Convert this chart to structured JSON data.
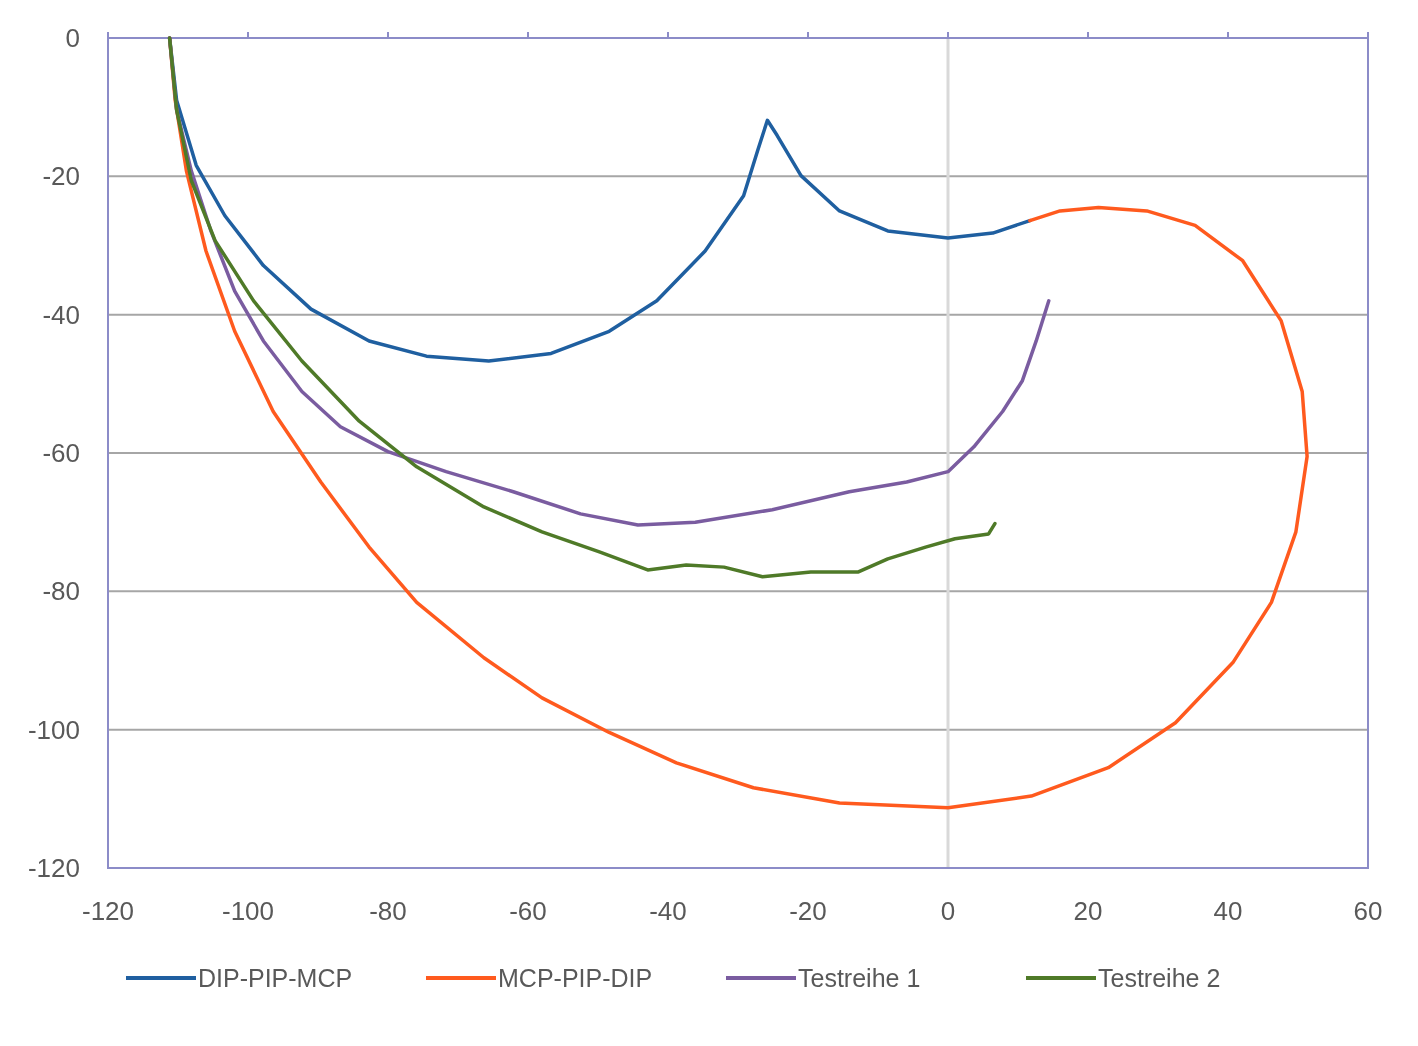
{
  "chart_data": {
    "type": "line",
    "xlim": [
      -120,
      60
    ],
    "ylim": [
      -120,
      0
    ],
    "xticks": [
      -120,
      -100,
      -80,
      -60,
      -40,
      -20,
      0,
      20,
      40,
      60
    ],
    "yticks": [
      -120,
      -100,
      -80,
      -60,
      -40,
      -20,
      0
    ],
    "grid": "y",
    "legend": "bottom",
    "line_style": "solid",
    "ref_lines": [
      {
        "axis": "x",
        "value": 0,
        "color": "#d9d9d9"
      }
    ],
    "series": [
      {
        "name": "DIP-PIP-MCP",
        "color": "#1f5fa0",
        "x": [
          -111.2,
          -110.2,
          -107.4,
          -103.3,
          -97.8,
          -91,
          -82.7,
          -74.5,
          -65.6,
          -56.7,
          -48.4,
          -41.6,
          -34.7,
          -29.2,
          -27.2,
          -25.8,
          -24.4,
          -21,
          -15.5,
          -8.6,
          0,
          6.4,
          11.7
        ],
        "values": [
          0,
          -9,
          -18.4,
          -25.7,
          -32.9,
          -39.2,
          -43.8,
          -46,
          -46.7,
          -45.6,
          -42.4,
          -38,
          -30.8,
          -22.8,
          -16.3,
          -11.9,
          -14.1,
          -19.9,
          -25,
          -27.9,
          -28.9,
          -28.2,
          -26.4
        ]
      },
      {
        "name": "MCP-PIP-DIP",
        "color": "#ff5a1e",
        "x": [
          -111.2,
          -110.4,
          -108.8,
          -106,
          -101.9,
          -96.4,
          -89.6,
          -82.7,
          -75.9,
          -66.3,
          -58,
          -48.4,
          -38.8,
          -27.8,
          -15.5,
          0,
          11.9,
          22.9,
          32.5,
          40.7,
          46.2,
          49.7,
          51.3,
          50.6,
          47.6,
          42.1,
          35.3,
          28.4,
          21.5,
          16,
          11.7
        ],
        "values": [
          0,
          -9,
          -19.2,
          -30.8,
          -42.4,
          -54,
          -64.2,
          -73.6,
          -81.6,
          -89.6,
          -95.4,
          -100.4,
          -104.8,
          -108.4,
          -110.6,
          -111.3,
          -109.6,
          -105.5,
          -99,
          -90.3,
          -81.6,
          -71.4,
          -60.5,
          -51.1,
          -40.9,
          -32.2,
          -27.1,
          -25,
          -24.5,
          -25,
          -26.4
        ]
      },
      {
        "name": "Testreihe 1",
        "color": "#7a5ca0",
        "x": [
          -111.2,
          -110.2,
          -108.1,
          -105.3,
          -101.9,
          -97.8,
          -92.3,
          -86.8,
          -80,
          -71.7,
          -62.1,
          -52.5,
          -44.3,
          -36.1,
          -25.1,
          -14.1,
          -5.9,
          0,
          3.7,
          7.8,
          10.6,
          12.6,
          14.4
        ],
        "values": [
          0,
          -10.4,
          -19.2,
          -27.9,
          -36.6,
          -43.8,
          -51.1,
          -56.2,
          -59.8,
          -62.7,
          -65.6,
          -68.8,
          -70.4,
          -70,
          -68.2,
          -65.6,
          -64.2,
          -62.7,
          -59.1,
          -54,
          -49.6,
          -43.8,
          -38
        ]
      },
      {
        "name": "Testreihe 2",
        "color": "#4f7a28",
        "x": [
          -111.2,
          -110.2,
          -108.1,
          -104.7,
          -99.2,
          -92.3,
          -84.1,
          -75.9,
          -66.3,
          -58,
          -49.8,
          -42.9,
          -37.4,
          -32,
          -26.5,
          -19.6,
          -12.8,
          -8.6,
          -3.2,
          1,
          5.8,
          6.7
        ],
        "values": [
          0,
          -10.4,
          -20.6,
          -29.3,
          -38,
          -46.7,
          -55.4,
          -62,
          -67.8,
          -71.4,
          -74.3,
          -76.9,
          -76.2,
          -76.5,
          -77.9,
          -77.2,
          -77.2,
          -75.3,
          -73.6,
          -72.4,
          -71.7,
          -70.2
        ]
      }
    ]
  }
}
